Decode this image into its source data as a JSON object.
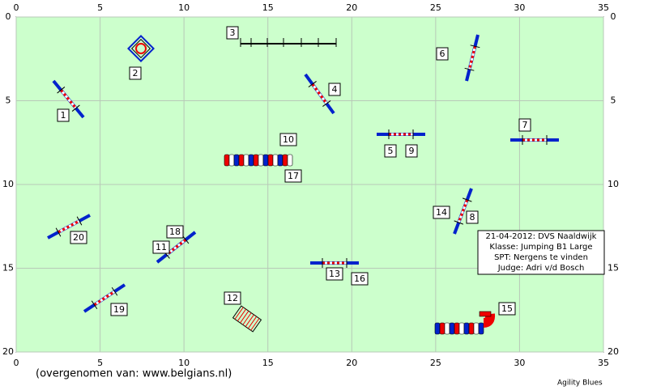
{
  "x_axis": {
    "ticks": [
      0,
      5,
      10,
      15,
      20,
      25,
      30,
      35
    ]
  },
  "y_axis": {
    "ticks": [
      0,
      5,
      10,
      15,
      20
    ]
  },
  "obstacle_labels": [
    "1",
    "2",
    "3",
    "4",
    "5",
    "6",
    "7",
    "8",
    "9",
    "10",
    "11",
    "12",
    "13",
    "14",
    "15",
    "16",
    "17",
    "18",
    "19",
    "20"
  ],
  "info": [
    "21-04-2012: DVS Naaldwijk",
    "Klasse: Jumping B1 Large",
    "SPT: Nergens te vinden",
    "Judge: Adri v/d Bosch"
  ],
  "source": "(overgenomen van: www.belgians.nl)",
  "brand": "Agility Blues"
}
